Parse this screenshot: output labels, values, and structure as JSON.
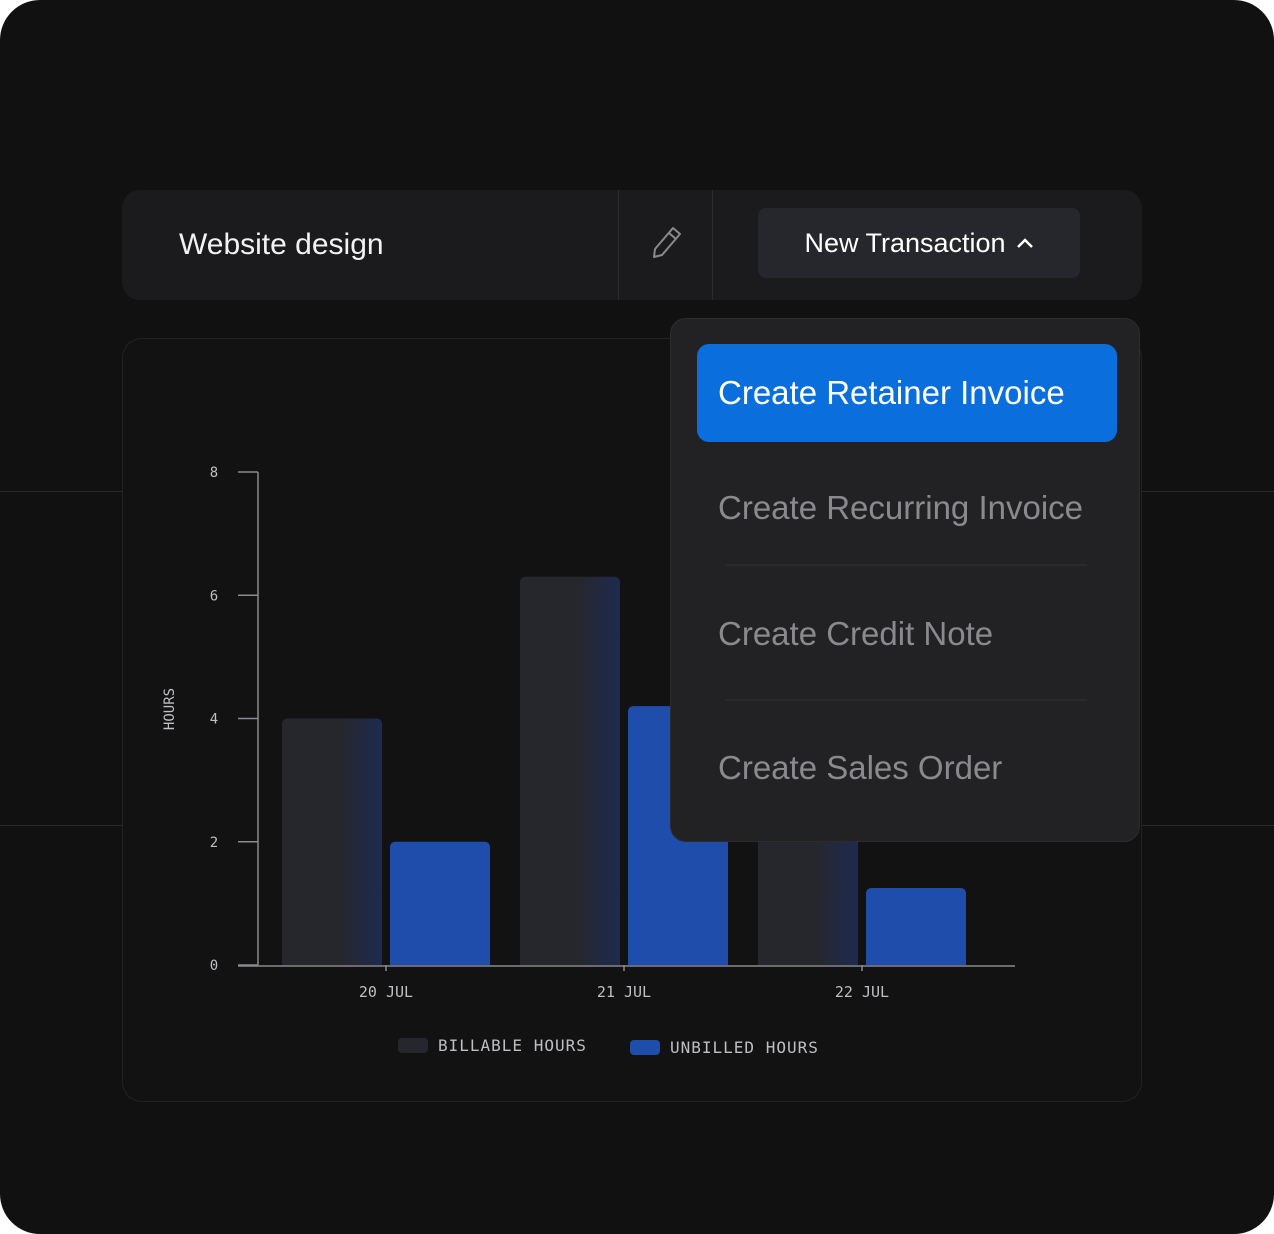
{
  "header": {
    "title": "Website design",
    "edit_icon": "pencil-icon",
    "new_transaction_label": "New Transaction",
    "new_transaction_icon": "chevron-up-icon"
  },
  "menu": {
    "items": [
      {
        "label": "Create Retainer Invoice",
        "active": true
      },
      {
        "label": "Create Recurring Invoice",
        "active": false
      },
      {
        "label": "Create Credit Note",
        "active": false
      },
      {
        "label": "Create Sales Order",
        "active": false
      }
    ]
  },
  "colors": {
    "billable": "#26272d",
    "unbilled": "#1e4dab",
    "accent": "#0a6fdc"
  },
  "chart_data": {
    "type": "bar",
    "categories": [
      "20 JUL",
      "21 JUL",
      "22 JUL"
    ],
    "series": [
      {
        "name": "BILLABLE HOURS",
        "values": [
          4,
          6.3,
          5
        ]
      },
      {
        "name": "UNBILLED HOURS",
        "values": [
          2,
          4.2,
          1.25
        ]
      }
    ],
    "ylabel": "HOURS",
    "ylim": [
      0,
      8
    ],
    "yticks": [
      "0",
      "2",
      "4",
      "6",
      "8"
    ],
    "legend": "bottom",
    "grid": false
  }
}
